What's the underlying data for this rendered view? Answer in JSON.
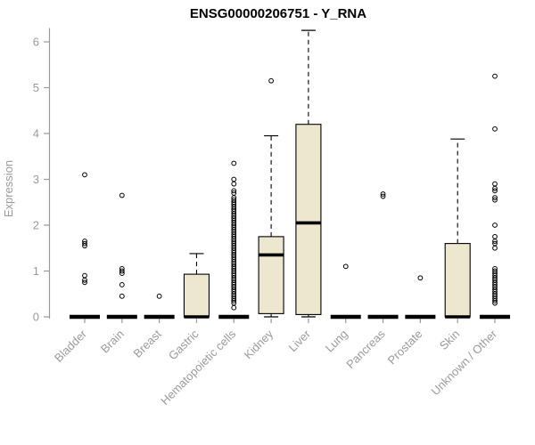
{
  "chart_data": {
    "type": "boxplot",
    "title": "ENSG00000206751 - Y_RNA",
    "ylabel": "Expression",
    "xlabel": "",
    "ylim": [
      0,
      6.3
    ],
    "yticks": [
      0,
      1,
      2,
      3,
      4,
      5,
      6
    ],
    "grid": false,
    "legend": "none",
    "box_fill": "#EDE7CF",
    "box_stroke": "#000000",
    "axis_color": "#9a9a9a",
    "categories": [
      "Bladder",
      "Brain",
      "Breast",
      "Gastric",
      "Hematopoietic cells",
      "Kidney",
      "Liver",
      "Lung",
      "Pancreas",
      "Prostate",
      "Skin",
      "Unknown / Other"
    ],
    "series": [
      {
        "name": "Bladder",
        "q1": 0,
        "median": 0,
        "q3": 0,
        "whisker_low": 0,
        "whisker_high": 0,
        "outliers": [
          0.75,
          0.8,
          0.9,
          1.55,
          1.6,
          1.65,
          3.1
        ]
      },
      {
        "name": "Brain",
        "q1": 0,
        "median": 0,
        "q3": 0,
        "whisker_low": 0,
        "whisker_high": 0,
        "outliers": [
          0.45,
          0.7,
          0.95,
          1.0,
          1.05,
          2.65
        ]
      },
      {
        "name": "Breast",
        "q1": 0,
        "median": 0,
        "q3": 0,
        "whisker_low": 0,
        "whisker_high": 0,
        "outliers": [
          0.45
        ]
      },
      {
        "name": "Gastric",
        "q1": 0,
        "median": 0,
        "q3": 0.93,
        "whisker_low": 0,
        "whisker_high": 1.38,
        "outliers": []
      },
      {
        "name": "Hematopoietic cells",
        "q1": 0,
        "median": 0,
        "q3": 0,
        "whisker_low": 0,
        "whisker_high": 0,
        "outliers": [
          0.2,
          0.3,
          0.35,
          0.4,
          0.45,
          0.5,
          0.55,
          0.6,
          0.65,
          0.7,
          0.75,
          0.8,
          0.85,
          0.9,
          0.95,
          1.0,
          1.05,
          1.1,
          1.15,
          1.2,
          1.25,
          1.3,
          1.35,
          1.4,
          1.45,
          1.5,
          1.55,
          1.6,
          1.65,
          1.7,
          1.75,
          1.8,
          1.85,
          1.9,
          1.95,
          2.0,
          2.05,
          2.1,
          2.15,
          2.2,
          2.25,
          2.3,
          2.35,
          2.4,
          2.45,
          2.5,
          2.55,
          2.6,
          2.7,
          2.75,
          2.9,
          3.0,
          3.35
        ]
      },
      {
        "name": "Kidney",
        "q1": 0.07,
        "median": 1.35,
        "q3": 1.75,
        "whisker_low": 0,
        "whisker_high": 3.95,
        "outliers": [
          5.15
        ]
      },
      {
        "name": "Liver",
        "q1": 0.05,
        "median": 2.05,
        "q3": 4.2,
        "whisker_low": 0,
        "whisker_high": 6.25,
        "outliers": []
      },
      {
        "name": "Lung",
        "q1": 0,
        "median": 0,
        "q3": 0,
        "whisker_low": 0,
        "whisker_high": 0,
        "outliers": [
          1.1
        ]
      },
      {
        "name": "Pancreas",
        "q1": 0,
        "median": 0,
        "q3": 0,
        "whisker_low": 0,
        "whisker_high": 0,
        "outliers": [
          2.63,
          2.68
        ]
      },
      {
        "name": "Prostate",
        "q1": 0,
        "median": 0,
        "q3": 0,
        "whisker_low": 0,
        "whisker_high": 0,
        "outliers": [
          0.85
        ]
      },
      {
        "name": "Skin",
        "q1": 0,
        "median": 0,
        "q3": 1.6,
        "whisker_low": 0,
        "whisker_high": 3.88,
        "outliers": []
      },
      {
        "name": "Unknown / Other",
        "q1": 0,
        "median": 0,
        "q3": 0,
        "whisker_low": 0,
        "whisker_high": 0,
        "outliers": [
          0.3,
          0.35,
          0.4,
          0.45,
          0.5,
          0.55,
          0.6,
          0.65,
          0.7,
          0.75,
          0.8,
          0.85,
          0.9,
          0.95,
          1.0,
          1.05,
          1.5,
          1.6,
          1.65,
          1.75,
          2.0,
          2.55,
          2.6,
          2.75,
          2.8,
          2.9,
          4.1,
          5.25
        ]
      }
    ]
  }
}
